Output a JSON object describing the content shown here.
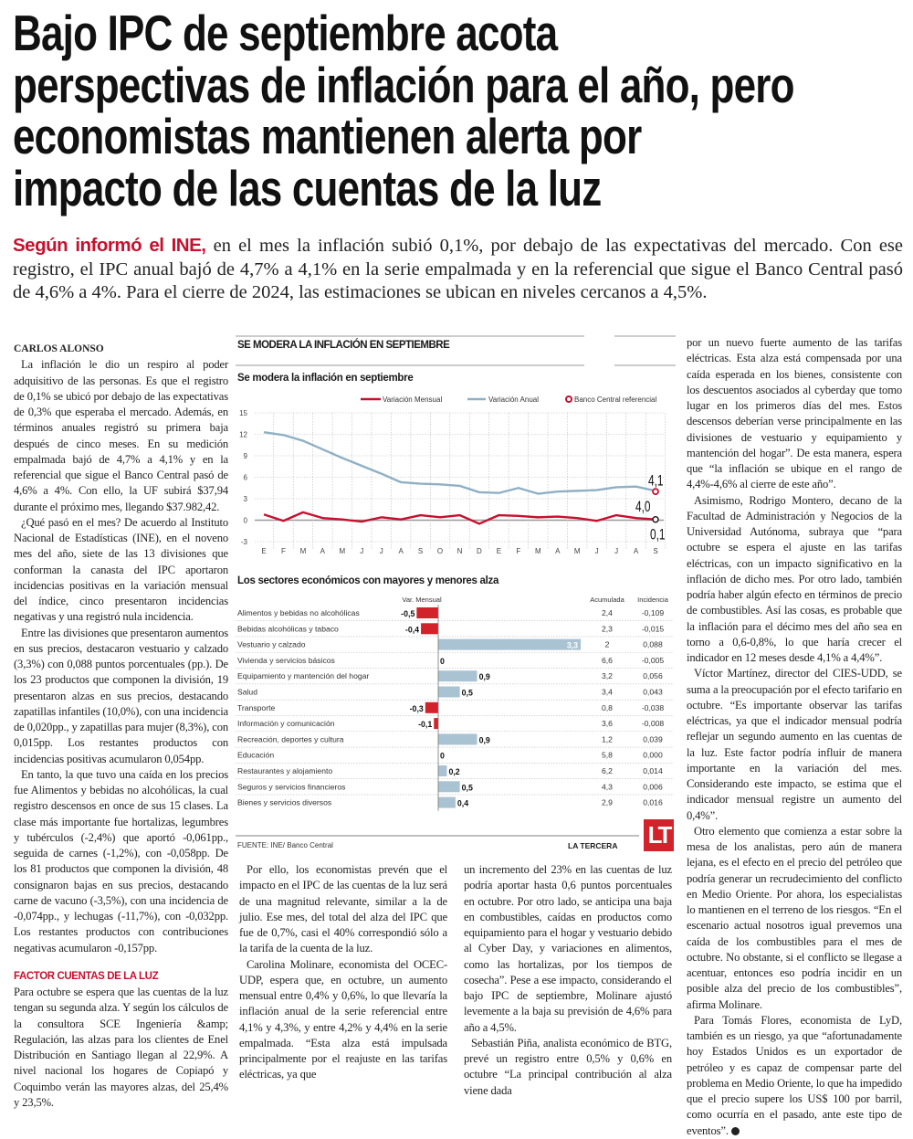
{
  "headline": [
    "Bajo IPC de septiembre acota",
    "perspectivas de inflación para el año, pero",
    "economistas mantienen alerta por",
    "impacto de las cuentas de la luz"
  ],
  "lead": {
    "kicker": "Según informó el INE,",
    "text": " en el mes la inflación subió 0,1%, por debajo de las expectativas del mercado. Con ese registro, el IPC anual bajó de 4,7% a 4,1% en la serie empalmada y en la referencial que sigue el Banco Central pasó de 4,6% a 4%. Para el cierre de 2024, las estimaciones se ubican en niveles cercanos a 4,5%."
  },
  "byline": "CARLOS ALONSO",
  "left": [
    "La inflación le dio un respiro al poder adquisitivo de las personas. Es que el registro de 0,1% se ubicó por debajo de las expectativas de 0,3% que esperaba el mercado. Además, en términos anuales registró su primera baja después de cinco meses. En su medición empalmada bajó de 4,7% a 4,1% y en la referencial que sigue el Banco Central pasó de 4,6% a 4%. Con ello, la UF subirá $37,94 durante el próximo mes, llegando $37.982,42.",
    "¿Qué pasó en el mes? De acuerdo al Instituto Nacional de Estadísticas (INE), en el noveno mes del año, siete de las 13 divisiones que conforman la canasta del IPC aportaron incidencias positivas en la variación mensual del índice, cinco presentaron incidencias negativas y una registró nula incidencia.",
    "Entre las divisiones que presentaron aumentos en sus precios, destacaron vestuario y calzado (3,3%) con 0,088 puntos porcentuales (pp.). De los 23 productos que componen la división, 19 presentaron alzas en sus precios, destacando zapatillas infantiles (10,0%), con una incidencia de 0,020pp., y zapatillas para mujer (8,3%), con 0,015pp. Los restantes productos con incidencias positivas acumularon 0,054pp.",
    "En tanto, la que tuvo una caída en los precios fue Alimentos y bebidas no alcohólicas, la cual registro descensos en once de sus 15 clases. La clase más importante fue hortalizas, legumbres y tubérculos (-2,4%) que aportó -0,061pp., seguida de carnes (-1,2%), con -0,058pp. De los 81 productos que componen la división, 48 consignaron bajas en sus precios, destacando carne de vacuno (-3,5%), con una incidencia de -0,074pp., y lechugas (-11,7%), con -0,032pp. Los restantes productos con contribuciones negativas acumularon -0,157pp."
  ],
  "subhead": "FACTOR CUENTAS DE LA LUZ",
  "left_after": "Para octubre se espera que las cuentas de la luz tengan su segunda alza. Y según los cálculos de la consultora SCE Ingeniería &amp; Regulación, las alzas para los clientes de Enel Distribución en Santiago llegan al 22,9%. A nivel nacional los hogares de Copiapó y Coquimbo verán las mayores alzas, del 25,4% y 23,5%.",
  "mid_a": [
    "Por ello, los economistas prevén que el impacto en el IPC de las cuentas de la luz será de una magnitud relevante, similar a la de julio. Ese mes, del total del alza del IPC que fue de 0,7%, casi el 40% correspondió sólo a la tarifa de la cuenta de la luz.",
    "Carolina Molinare, economista del OCEC-UDP, espera que, en octubre, un aumento mensual entre 0,4% y 0,6%, lo que llevaría la inflación anual de la serie referencial entre 4,1% y 4,3%, y entre 4,2% y 4,4% en la serie empalmada. “Esta alza está impulsada principalmente por el reajuste en las tarifas eléctricas, ya que"
  ],
  "mid_b": [
    "un incremento del 23% en las cuentas de luz podría aportar hasta 0,6 puntos porcentuales en octubre. Por otro lado, se anticipa una baja en combustibles, caídas en productos como equipamiento para el hogar y vestuario debido al Cyber Day, y variaciones en alimentos, como las hortalizas, por los tiempos de cosecha”. Pese a ese impacto, considerando el bajo IPC de septiembre, Molinare ajustó levemente a la baja su previsión de 4,6% para año a 4,5%.",
    "Sebastián Piña, analista económico de BTG, prevé un registro entre 0,5% y 0,6% en octubre “La principal contribución al alza viene dada"
  ],
  "right": [
    "por un nuevo fuerte aumento de las tarifas eléctricas. Esta alza está compensada por una caída esperada en los bienes, consistente con los descuentos asociados al cyberday que tomo lugar en los primeros días del mes. Estos descensos deberían verse principalmente en las divisiones de vestuario y equipamiento y mantención del hogar”. De esta manera, espera que “la inflación se ubique en el rango de 4,4%-4,6% al cierre de este año”.",
    "Asimismo, Rodrigo Montero, decano de la Facultad de Administración y Negocios de la Universidad Autónoma, subraya que “para octubre se espera el ajuste en las tarifas eléctricas, con un impacto significativo en la inflación de dicho mes. Por otro lado, también podría haber algún efecto en términos de precio de combustibles. Así las cosas, es probable que la inflación para el décimo mes del año sea en torno a 0,6-0,8%, lo que haría crecer el indicador en 12 meses desde 4,1% a 4,4%”.",
    "Víctor Martínez, director del CIES-UDD, se suma a la preocupación por el efecto tarifario en octubre. “Es importante observar las tarifas eléctricas, ya que el indicador mensual podría reflejar un segundo aumento en las cuentas de la luz. Este factor podría influir de manera importante en la variación del mes. Considerando este impacto, se estima que el indicador mensual registre un aumento del 0,4%”.",
    "Otro elemento que comienza a estar sobre la mesa de los analistas, pero aún de manera lejana, es el efecto en el precio del petróleo que podría generar un recrudecimiento del conflicto en Medio Oriente. Por ahora, los especialistas lo mantienen en el terreno de los riesgos. “En el escenario actual nosotros igual prevemos una caída de los combustibles para el mes de octubre. No obstante, si el conflicto se llegase a acentuar, entonces eso podría incidir en un posible alza del precio de los combustibles”, afirma Molinare.",
    "Para Tomás Flores, economista de LyD, también es un riesgo, ya que “afortunadamente hoy Estados Unidos es un exportador de petróleo y es capaz de compensar parte del problema en Medio Oriente, lo que ha impedido que el precio supere los US$ 100 por barril, como ocurría en el pasado, ante este tipo de eventos”."
  ],
  "graphic": {
    "heading": "SE MODERA LA INFLACIÓN EN SEPTIEMBRE",
    "source": "FUENTE: INE/ Banco Central",
    "brand": "LA TERCERA",
    "logo": "LT"
  },
  "colors": {
    "accent": "#c8102e",
    "mensual": "#c8102e",
    "anual": "#8fb0c4",
    "negative_bar": "#d2232a",
    "positive_bar": "#a9c3d3"
  },
  "chart_data": [
    {
      "type": "line",
      "title": "Se modera la inflación en septiembre",
      "categories": [
        "E",
        "F",
        "M",
        "A",
        "M",
        "J",
        "J",
        "A",
        "S",
        "O",
        "N",
        "D",
        "E",
        "F",
        "M",
        "A",
        "M",
        "J",
        "J",
        "A",
        "S"
      ],
      "ylim": [
        -3,
        15
      ],
      "yticks": [
        "15",
        "12",
        "9",
        "6",
        "3",
        "0",
        "-3"
      ],
      "grid": true,
      "legend": "top-right",
      "series": [
        {
          "name": "Variación Mensual",
          "color": "#c8102e",
          "values": [
            0.8,
            -0.1,
            1.1,
            0.3,
            0.1,
            -0.2,
            0.4,
            0.1,
            0.7,
            0.4,
            0.7,
            -0.5,
            0.7,
            0.6,
            0.4,
            0.5,
            0.3,
            -0.1,
            0.7,
            0.3,
            0.1
          ]
        },
        {
          "name": "Variación Anual",
          "color": "#8fb0c4",
          "values": [
            12.3,
            11.9,
            11.1,
            9.9,
            8.7,
            7.6,
            6.5,
            5.3,
            5.1,
            5.0,
            4.8,
            3.9,
            3.8,
            4.5,
            3.7,
            4.0,
            4.1,
            4.2,
            4.6,
            4.7,
            4.1
          ]
        },
        {
          "name": "Banco Central referencial",
          "color": "#c8102e",
          "values": [
            null,
            null,
            null,
            null,
            null,
            null,
            null,
            null,
            null,
            null,
            null,
            null,
            null,
            null,
            null,
            null,
            null,
            null,
            null,
            null,
            4.0
          ]
        }
      ],
      "annotations": [
        "4,1",
        "4,0",
        "0,1"
      ]
    },
    {
      "type": "table",
      "title": "Los sectores económicos con mayores y menores alza",
      "columns": [
        "Var. Mensual",
        "Acumulada",
        "Incidencia"
      ],
      "rows": [
        {
          "label": "Alimentos y bebidas no alcohólicas",
          "value": -0.5,
          "value_label": "-0,5",
          "acumulada": "2,4",
          "incidencia": "-0,109"
        },
        {
          "label": "Bebidas alcohólicas y tabaco",
          "value": -0.4,
          "value_label": "-0,4",
          "acumulada": "2,3",
          "incidencia": "-0,015"
        },
        {
          "label": "Vestuario y calzado",
          "value": 3.3,
          "value_label": "3,3",
          "acumulada": "2",
          "incidencia": "0,088"
        },
        {
          "label": "Vivienda y servicios básicos",
          "value": 0,
          "value_label": "0",
          "acumulada": "6,6",
          "incidencia": "-0,005"
        },
        {
          "label": "Equipamiento y mantención del hogar",
          "value": 0.9,
          "value_label": "0,9",
          "acumulada": "3,2",
          "incidencia": "0,056"
        },
        {
          "label": "Salud",
          "value": 0.5,
          "value_label": "0,5",
          "acumulada": "3,4",
          "incidencia": "0,043"
        },
        {
          "label": "Transporte",
          "value": -0.3,
          "value_label": "-0,3",
          "acumulada": "0,8",
          "incidencia": "-0,038"
        },
        {
          "label": "Información y comunicación",
          "value": -0.1,
          "value_label": "-0,1",
          "acumulada": "3,6",
          "incidencia": "-0,008"
        },
        {
          "label": "Recreación, deportes y cultura",
          "value": 0.9,
          "value_label": "0,9",
          "acumulada": "1,2",
          "incidencia": "0,039"
        },
        {
          "label": "Educación",
          "value": 0,
          "value_label": "0",
          "acumulada": "5,8",
          "incidencia": "0,000"
        },
        {
          "label": "Restaurantes y alojamiento",
          "value": 0.2,
          "value_label": "0,2",
          "acumulada": "6,2",
          "incidencia": "0,014"
        },
        {
          "label": "Seguros y servicios financieros",
          "value": 0.5,
          "value_label": "0,5",
          "acumulada": "4,3",
          "incidencia": "0,006"
        },
        {
          "label": "Bienes y servicios diversos",
          "value": 0.4,
          "value_label": "0,4",
          "acumulada": "2,9",
          "incidencia": "0,016"
        }
      ]
    }
  ]
}
